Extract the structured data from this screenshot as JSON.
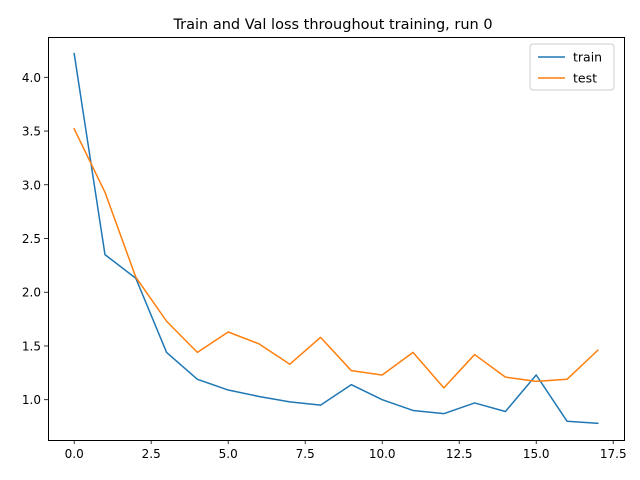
{
  "chart_data": {
    "type": "line",
    "title": "Train and Val loss throughout training, run 0",
    "xlabel": "",
    "ylabel": "",
    "xlim": [
      -0.85,
      17.85
    ],
    "ylim": [
      0.625,
      4.375
    ],
    "xticks": [
      0.0,
      2.5,
      5.0,
      7.5,
      10.0,
      12.5,
      15.0,
      17.5
    ],
    "xtick_labels": [
      "0.0",
      "2.5",
      "5.0",
      "7.5",
      "10.0",
      "12.5",
      "15.0",
      "17.5"
    ],
    "yticks": [
      1.0,
      1.5,
      2.0,
      2.5,
      3.0,
      3.5,
      4.0
    ],
    "ytick_labels": [
      "1.0",
      "1.5",
      "2.0",
      "2.5",
      "3.0",
      "3.5",
      "4.0"
    ],
    "grid": false,
    "legend_position": "top-right",
    "x": [
      0,
      1,
      2,
      3,
      4,
      5,
      6,
      7,
      8,
      9,
      10,
      11,
      12,
      13,
      14,
      15,
      16,
      17
    ],
    "series": [
      {
        "name": "train",
        "color": "#1f77b4",
        "values": [
          4.22,
          2.35,
          2.13,
          1.44,
          1.19,
          1.09,
          1.03,
          0.98,
          0.95,
          1.14,
          1.0,
          0.9,
          0.87,
          0.97,
          0.89,
          1.23,
          0.8,
          0.78
        ]
      },
      {
        "name": "test",
        "color": "#ff7f0e",
        "values": [
          3.52,
          2.93,
          2.14,
          1.73,
          1.44,
          1.63,
          1.52,
          1.33,
          1.58,
          1.27,
          1.23,
          1.44,
          1.11,
          1.42,
          1.21,
          1.17,
          1.19,
          1.46
        ]
      }
    ]
  }
}
